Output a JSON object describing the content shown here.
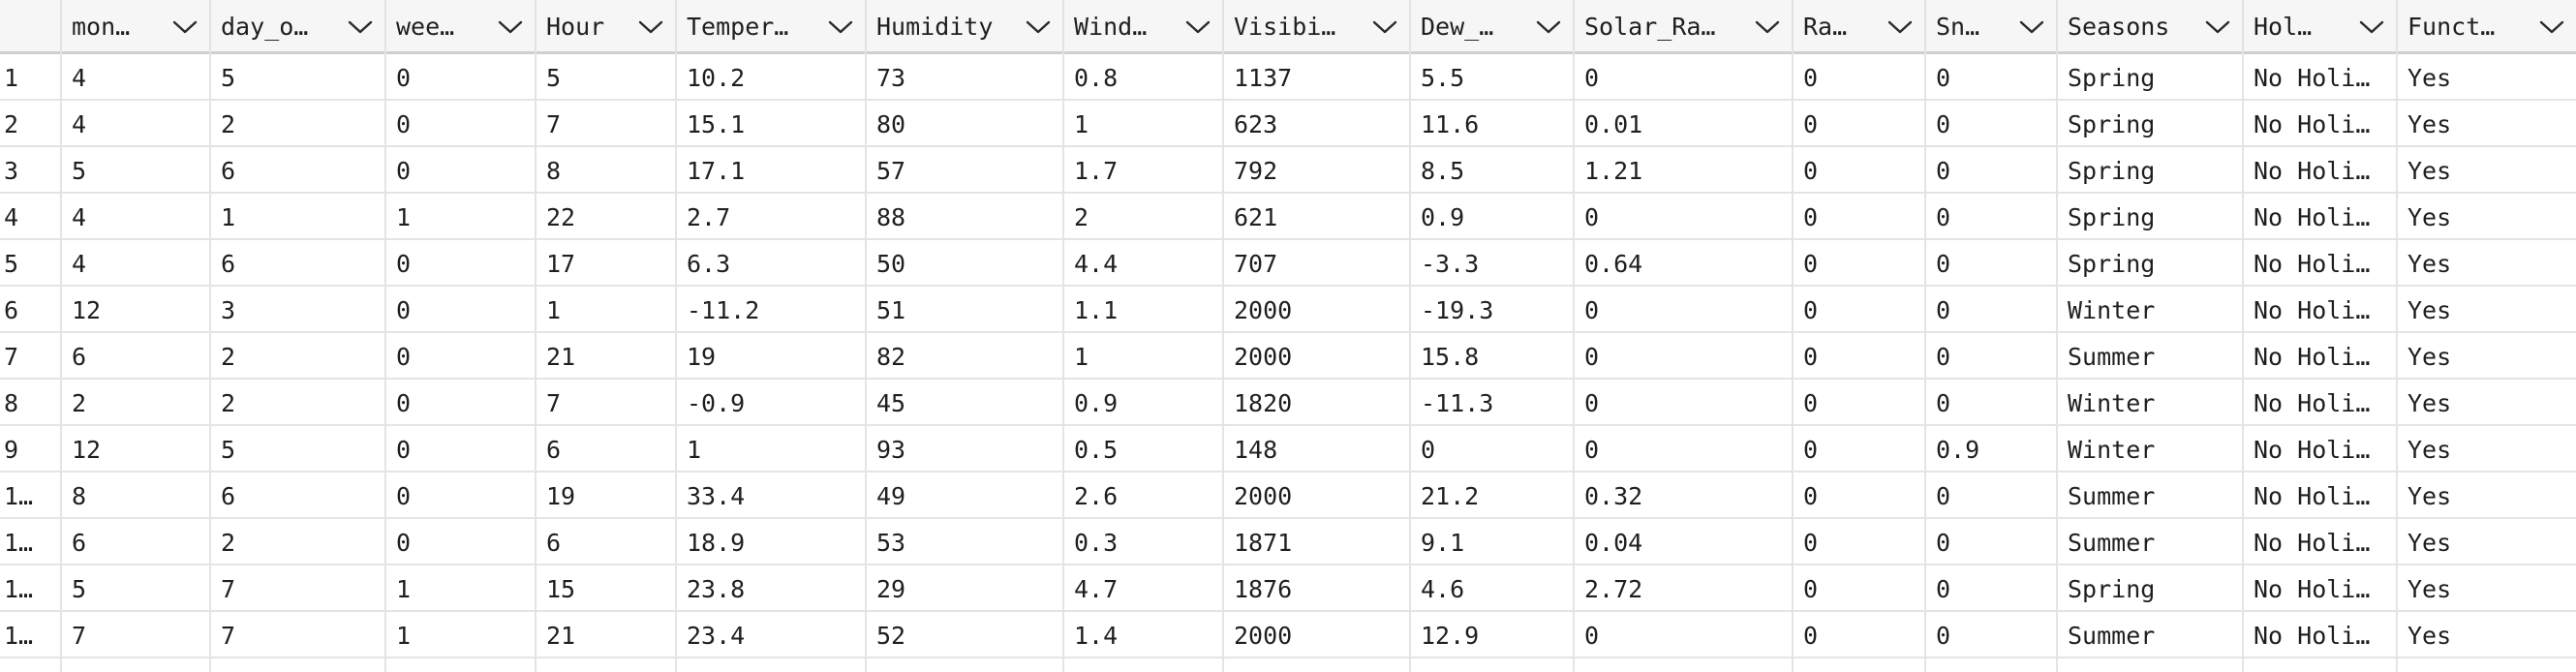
{
  "columns": [
    "",
    "mon…",
    "day_o…",
    "wee…",
    "Hour",
    "Temper…",
    "Humidity",
    "Wind…",
    "Visibi…",
    "Dew_…",
    "Solar_Ra…",
    "Ra…",
    "Sn…",
    "Seasons",
    "Hol…",
    "Funct…"
  ],
  "rows": [
    [
      "1",
      "4",
      "5",
      "0",
      "5",
      "10.2",
      "73",
      "0.8",
      "1137",
      "5.5",
      "0",
      "0",
      "0",
      "Spring",
      "No Holi…",
      "Yes"
    ],
    [
      "2",
      "4",
      "2",
      "0",
      "7",
      "15.1",
      "80",
      "1",
      "623",
      "11.6",
      "0.01",
      "0",
      "0",
      "Spring",
      "No Holi…",
      "Yes"
    ],
    [
      "3",
      "5",
      "6",
      "0",
      "8",
      "17.1",
      "57",
      "1.7",
      "792",
      "8.5",
      "1.21",
      "0",
      "0",
      "Spring",
      "No Holi…",
      "Yes"
    ],
    [
      "4",
      "4",
      "1",
      "1",
      "22",
      "2.7",
      "88",
      "2",
      "621",
      "0.9",
      "0",
      "0",
      "0",
      "Spring",
      "No Holi…",
      "Yes"
    ],
    [
      "5",
      "4",
      "6",
      "0",
      "17",
      "6.3",
      "50",
      "4.4",
      "707",
      "-3.3",
      "0.64",
      "0",
      "0",
      "Spring",
      "No Holi…",
      "Yes"
    ],
    [
      "6",
      "12",
      "3",
      "0",
      "1",
      "-11.2",
      "51",
      "1.1",
      "2000",
      "-19.3",
      "0",
      "0",
      "0",
      "Winter",
      "No Holi…",
      "Yes"
    ],
    [
      "7",
      "6",
      "2",
      "0",
      "21",
      "19",
      "82",
      "1",
      "2000",
      "15.8",
      "0",
      "0",
      "0",
      "Summer",
      "No Holi…",
      "Yes"
    ],
    [
      "8",
      "2",
      "2",
      "0",
      "7",
      "-0.9",
      "45",
      "0.9",
      "1820",
      "-11.3",
      "0",
      "0",
      "0",
      "Winter",
      "No Holi…",
      "Yes"
    ],
    [
      "9",
      "12",
      "5",
      "0",
      "6",
      "1",
      "93",
      "0.5",
      "148",
      "0",
      "0",
      "0",
      "0.9",
      "Winter",
      "No Holi…",
      "Yes"
    ],
    [
      "1…",
      "8",
      "6",
      "0",
      "19",
      "33.4",
      "49",
      "2.6",
      "2000",
      "21.2",
      "0.32",
      "0",
      "0",
      "Summer",
      "No Holi…",
      "Yes"
    ],
    [
      "1…",
      "6",
      "2",
      "0",
      "6",
      "18.9",
      "53",
      "0.3",
      "1871",
      "9.1",
      "0.04",
      "0",
      "0",
      "Summer",
      "No Holi…",
      "Yes"
    ],
    [
      "1…",
      "5",
      "7",
      "1",
      "15",
      "23.8",
      "29",
      "4.7",
      "1876",
      "4.6",
      "2.72",
      "0",
      "0",
      "Spring",
      "No Holi…",
      "Yes"
    ],
    [
      "1…",
      "7",
      "7",
      "1",
      "21",
      "23.4",
      "52",
      "1.4",
      "2000",
      "12.9",
      "0",
      "0",
      "0",
      "Summer",
      "No Holi…",
      "Yes"
    ]
  ],
  "icons": {
    "column_menu": "chevron-down-icon"
  },
  "colors": {
    "header_bg": "#f6f6f6",
    "grid_line": "#e4e4e4",
    "text": "#1f1f1f"
  }
}
